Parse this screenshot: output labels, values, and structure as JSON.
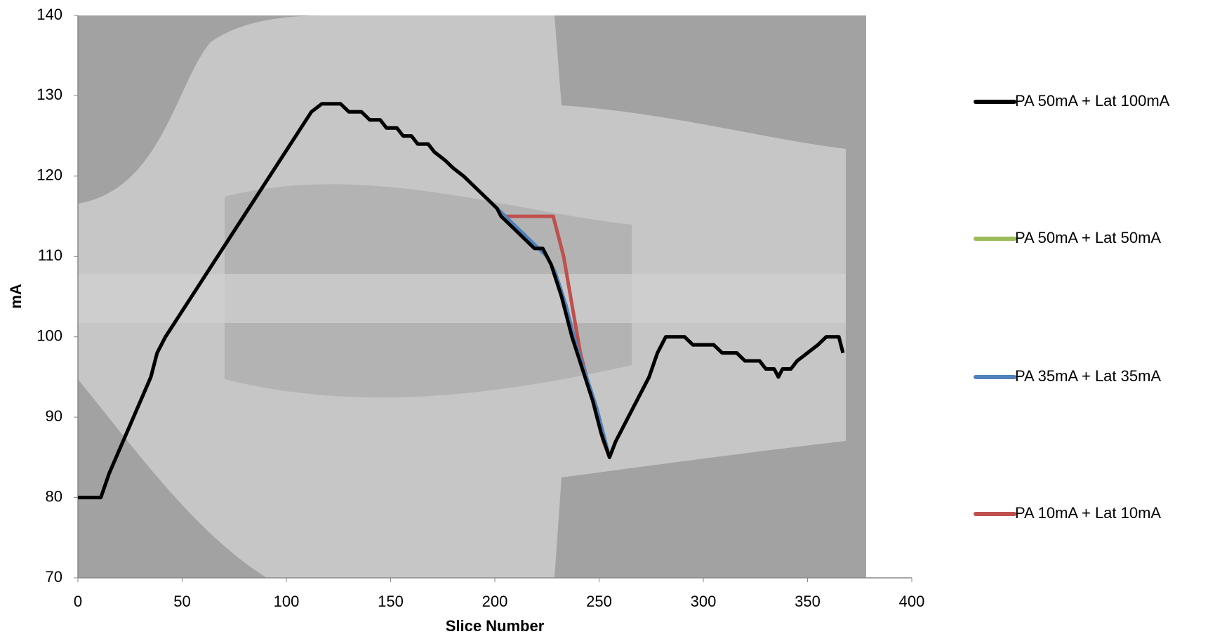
{
  "chart_data": {
    "type": "line",
    "x_label": "Slice Number",
    "y_label": "mA",
    "xlim": [
      0,
      400
    ],
    "xticks": [
      0,
      50,
      100,
      150,
      200,
      250,
      300,
      350,
      400
    ],
    "ylim": [
      70,
      140
    ],
    "yticks": [
      70,
      80,
      90,
      100,
      110,
      120,
      130,
      140
    ],
    "legend": "right",
    "series": [
      {
        "name": "PA 50mA + Lat 100mA",
        "color": "#000000",
        "x": [
          0,
          11,
          15,
          20,
          25,
          30,
          35,
          38,
          42,
          47,
          52,
          57,
          62,
          67,
          72,
          77,
          82,
          87,
          92,
          97,
          102,
          107,
          112,
          117,
          126,
          130,
          136,
          140,
          145,
          148,
          153,
          156,
          160,
          163,
          168,
          171,
          176,
          180,
          185,
          189,
          193,
          197,
          201,
          203,
          207,
          211,
          215,
          219,
          223,
          227,
          232,
          237,
          242,
          247,
          251,
          255,
          258,
          262,
          266,
          270,
          274,
          278,
          282,
          291,
          295,
          305,
          309,
          316,
          320,
          327,
          330,
          334,
          336,
          338,
          342,
          345,
          350,
          355,
          359,
          365,
          367
        ],
        "values": [
          80,
          80,
          83,
          86,
          89,
          92,
          95,
          98,
          100,
          102,
          104,
          106,
          108,
          110,
          112,
          114,
          116,
          118,
          120,
          122,
          124,
          126,
          128,
          129,
          129,
          128,
          128,
          127,
          127,
          126,
          126,
          125,
          125,
          124,
          124,
          123,
          122,
          121,
          120,
          119,
          118,
          117,
          116,
          115,
          114,
          113,
          112,
          111,
          111,
          109,
          105,
          100,
          96,
          92,
          88,
          85,
          87,
          89,
          91,
          93,
          95,
          98,
          100,
          100,
          99,
          99,
          98,
          98,
          97,
          97,
          96,
          96,
          95,
          96,
          96,
          97,
          98,
          99,
          100,
          100,
          98
        ]
      },
      {
        "name": "PA 50mA + Lat 50mA",
        "color": "#9bbb59",
        "x": [
          0,
          11,
          15,
          20,
          25,
          30,
          35,
          38,
          42,
          47,
          52,
          57,
          62,
          67,
          72,
          77,
          82,
          87,
          92,
          97,
          102,
          107,
          112,
          117,
          126,
          130,
          136,
          140,
          145,
          148,
          153,
          156,
          160,
          163,
          168,
          171,
          176,
          180,
          185,
          189,
          193,
          197,
          201,
          203,
          207,
          211,
          215,
          219,
          223,
          227,
          232,
          237,
          242,
          247,
          251,
          255,
          258,
          262,
          266,
          270,
          274,
          278,
          282,
          291,
          295,
          305,
          309,
          316,
          320,
          327,
          330,
          334,
          336,
          338,
          342,
          345,
          350,
          355,
          359,
          365,
          367
        ],
        "values": [
          80,
          80,
          83,
          86,
          89,
          92,
          95,
          98,
          100,
          102,
          104,
          106,
          108,
          110,
          112,
          114,
          116,
          118,
          120,
          122,
          124,
          126,
          128,
          129,
          129,
          128,
          128,
          127,
          127,
          126,
          126,
          125,
          125,
          124,
          124,
          123,
          122,
          121,
          120,
          119,
          118,
          117,
          116,
          115,
          114,
          113,
          112,
          111,
          111,
          109,
          105,
          100,
          96,
          92,
          88,
          85,
          87,
          89,
          91,
          93,
          95,
          98,
          100,
          100,
          99,
          99,
          98,
          98,
          97,
          97,
          96,
          96,
          95,
          96,
          96,
          97,
          98,
          99,
          100,
          100,
          98
        ]
      },
      {
        "name": "PA 35mA + Lat 35mA",
        "color": "#4f81bd",
        "x": [
          0,
          11,
          15,
          20,
          25,
          30,
          35,
          38,
          42,
          47,
          52,
          57,
          62,
          67,
          72,
          77,
          82,
          87,
          92,
          97,
          102,
          107,
          112,
          117,
          126,
          130,
          136,
          140,
          145,
          148,
          153,
          156,
          160,
          163,
          168,
          171,
          176,
          180,
          185,
          189,
          193,
          197,
          201,
          205,
          209,
          213,
          217,
          221,
          225,
          229,
          234,
          239,
          244,
          249,
          253,
          255,
          258,
          262,
          266,
          270,
          274,
          278,
          282,
          291,
          295,
          305,
          309,
          316,
          320,
          327,
          330,
          334,
          336,
          338,
          342,
          345,
          350,
          355,
          359,
          365,
          367
        ],
        "values": [
          80,
          80,
          83,
          86,
          89,
          92,
          95,
          98,
          100,
          102,
          104,
          106,
          108,
          110,
          112,
          114,
          116,
          118,
          120,
          122,
          124,
          126,
          128,
          129,
          129,
          128,
          128,
          127,
          127,
          126,
          126,
          125,
          125,
          124,
          124,
          123,
          122,
          121,
          120,
          119,
          118,
          117,
          116,
          115,
          114,
          113,
          112,
          111,
          110,
          108,
          104,
          99,
          95,
          91,
          87,
          85,
          87,
          89,
          91,
          93,
          95,
          98,
          100,
          100,
          99,
          99,
          98,
          98,
          97,
          97,
          96,
          96,
          95,
          96,
          96,
          97,
          98,
          99,
          100,
          100,
          98
        ]
      },
      {
        "name": "PA 10mA + Lat 10mA",
        "color": "#c0504d",
        "x": [
          0,
          11,
          15,
          20,
          25,
          30,
          35,
          38,
          42,
          47,
          52,
          57,
          62,
          67,
          72,
          77,
          82,
          87,
          92,
          97,
          102,
          107,
          112,
          117,
          126,
          130,
          136,
          140,
          145,
          148,
          153,
          156,
          160,
          163,
          168,
          171,
          176,
          180,
          185,
          189,
          193,
          197,
          201,
          203,
          228,
          233,
          237,
          241,
          247,
          252,
          255,
          258,
          262,
          266,
          270,
          274,
          278,
          282,
          291,
          295,
          305,
          309,
          316,
          320,
          327,
          330,
          334,
          336,
          338,
          342,
          345,
          350,
          355,
          359,
          365,
          367
        ],
        "values": [
          80,
          80,
          83,
          86,
          89,
          92,
          95,
          98,
          100,
          102,
          104,
          106,
          108,
          110,
          112,
          114,
          116,
          118,
          120,
          122,
          124,
          126,
          128,
          129,
          129,
          128,
          128,
          127,
          127,
          126,
          126,
          125,
          125,
          124,
          124,
          123,
          122,
          121,
          120,
          119,
          118,
          117,
          116,
          115,
          115,
          110,
          104,
          98,
          92,
          87,
          85,
          87,
          89,
          91,
          93,
          95,
          98,
          100,
          100,
          99,
          99,
          98,
          98,
          97,
          97,
          96,
          96,
          95,
          96,
          96,
          97,
          98,
          99,
          100,
          100,
          98
        ]
      }
    ]
  }
}
